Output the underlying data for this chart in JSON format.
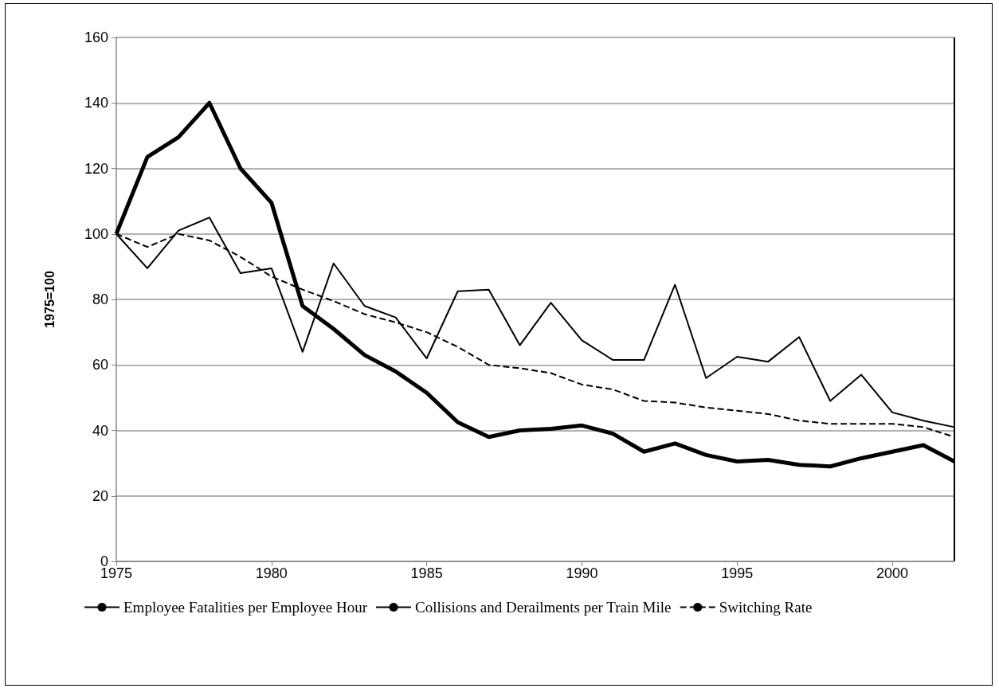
{
  "chart_data": {
    "type": "line",
    "ylabel": "1975=100",
    "x": [
      1975,
      1976,
      1977,
      1978,
      1979,
      1980,
      1981,
      1982,
      1983,
      1984,
      1985,
      1986,
      1987,
      1988,
      1989,
      1990,
      1991,
      1992,
      1993,
      1994,
      1995,
      1996,
      1997,
      1998,
      1999,
      2000,
      2001,
      2002
    ],
    "xlim": [
      1975,
      2002
    ],
    "xticks": [
      1975,
      1980,
      1985,
      1990,
      1995,
      2000
    ],
    "ylim": [
      0,
      160
    ],
    "yticks": [
      0,
      20,
      40,
      60,
      80,
      100,
      120,
      140,
      160
    ],
    "grid": "y",
    "legend": "bottom",
    "marker": "none",
    "series": [
      {
        "name": "Employee Fatalities per Employee Hour",
        "color": "#000000",
        "line_style": "solid",
        "values": [
          100,
          89.5,
          101,
          105,
          88,
          89.5,
          64,
          91,
          78,
          74.5,
          62,
          82.5,
          83,
          66,
          79,
          67.5,
          61.5,
          61.5,
          84.5,
          56,
          62.5,
          61,
          68.5,
          49,
          57,
          45.5,
          43,
          41
        ]
      },
      {
        "name": "Collisions and Derailments per Train Mile",
        "color": "#000000",
        "line_style": "solid",
        "values": [
          100,
          123.5,
          129.5,
          140,
          120,
          109.5,
          78,
          71,
          63,
          58,
          51.5,
          42.5,
          38,
          40,
          40.5,
          41.5,
          39,
          33.5,
          36,
          32.5,
          30.5,
          31,
          29.5,
          29,
          31.5,
          33.5,
          35.5,
          30.5
        ]
      },
      {
        "name": "Switching Rate",
        "color": "#000000",
        "line_style": "dashed",
        "values": [
          100,
          96,
          100,
          98,
          93,
          87,
          83,
          79.5,
          75.5,
          73,
          70,
          65.5,
          60,
          59,
          57.5,
          54,
          52.5,
          49,
          48.5,
          47,
          46,
          45,
          43,
          42,
          42,
          42,
          41,
          38
        ]
      }
    ]
  }
}
